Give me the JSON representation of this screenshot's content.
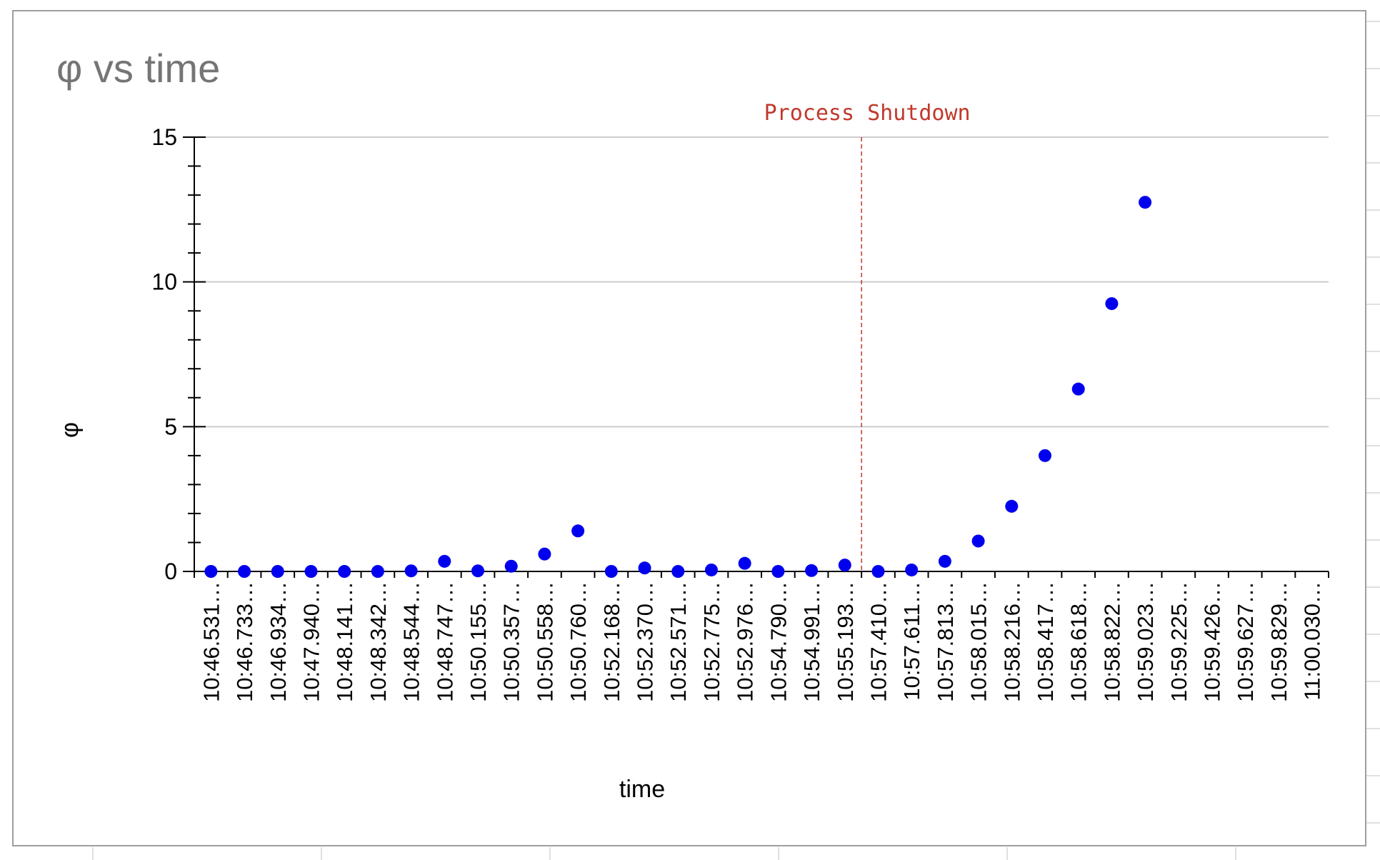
{
  "chart_data": {
    "type": "scatter",
    "title": "φ vs time",
    "xlabel": "time",
    "ylabel": "φ",
    "ylim": [
      0,
      15
    ],
    "y_ticks": [
      0,
      5,
      10,
      15
    ],
    "grid": true,
    "categories": [
      "10:46.531…",
      "10:46.733…",
      "10:46.934…",
      "10:47.940…",
      "10:48.141…",
      "10:48.342…",
      "10:48.544…",
      "10:48.747…",
      "10:50.155…",
      "10:50.357…",
      "10:50.558…",
      "10:50.760…",
      "10:52.168…",
      "10:52.370…",
      "10:52.571…",
      "10:52.775…",
      "10:52.976…",
      "10:54.790…",
      "10:54.991…",
      "10:55.193…",
      "10:57.410…",
      "10:57.611…",
      "10:57.813…",
      "10:58.015…",
      "10:58.216…",
      "10:58.417…",
      "10:58.618…",
      "10:58.822…",
      "10:59.023…",
      "10:59.225…",
      "10:59.426…",
      "10:59.627…",
      "10:59.829…",
      "11:00.030…"
    ],
    "series": [
      {
        "color": "#0000ee",
        "values": [
          0.0,
          0.0,
          0.0,
          0.0,
          0.0,
          0.0,
          0.02,
          0.35,
          0.02,
          0.18,
          0.6,
          1.4,
          0.0,
          0.12,
          0.0,
          0.05,
          0.28,
          0.0,
          0.03,
          0.22,
          0.0,
          0.05,
          0.35,
          1.05,
          2.25,
          4.0,
          6.3,
          9.25,
          12.75,
          null,
          null,
          null,
          null,
          null
        ]
      }
    ],
    "annotations": [
      {
        "text": "Process Shutdown",
        "color": "#c0392b",
        "position_after_category": "10:55.193…",
        "style": "dashed vertical line"
      }
    ]
  }
}
